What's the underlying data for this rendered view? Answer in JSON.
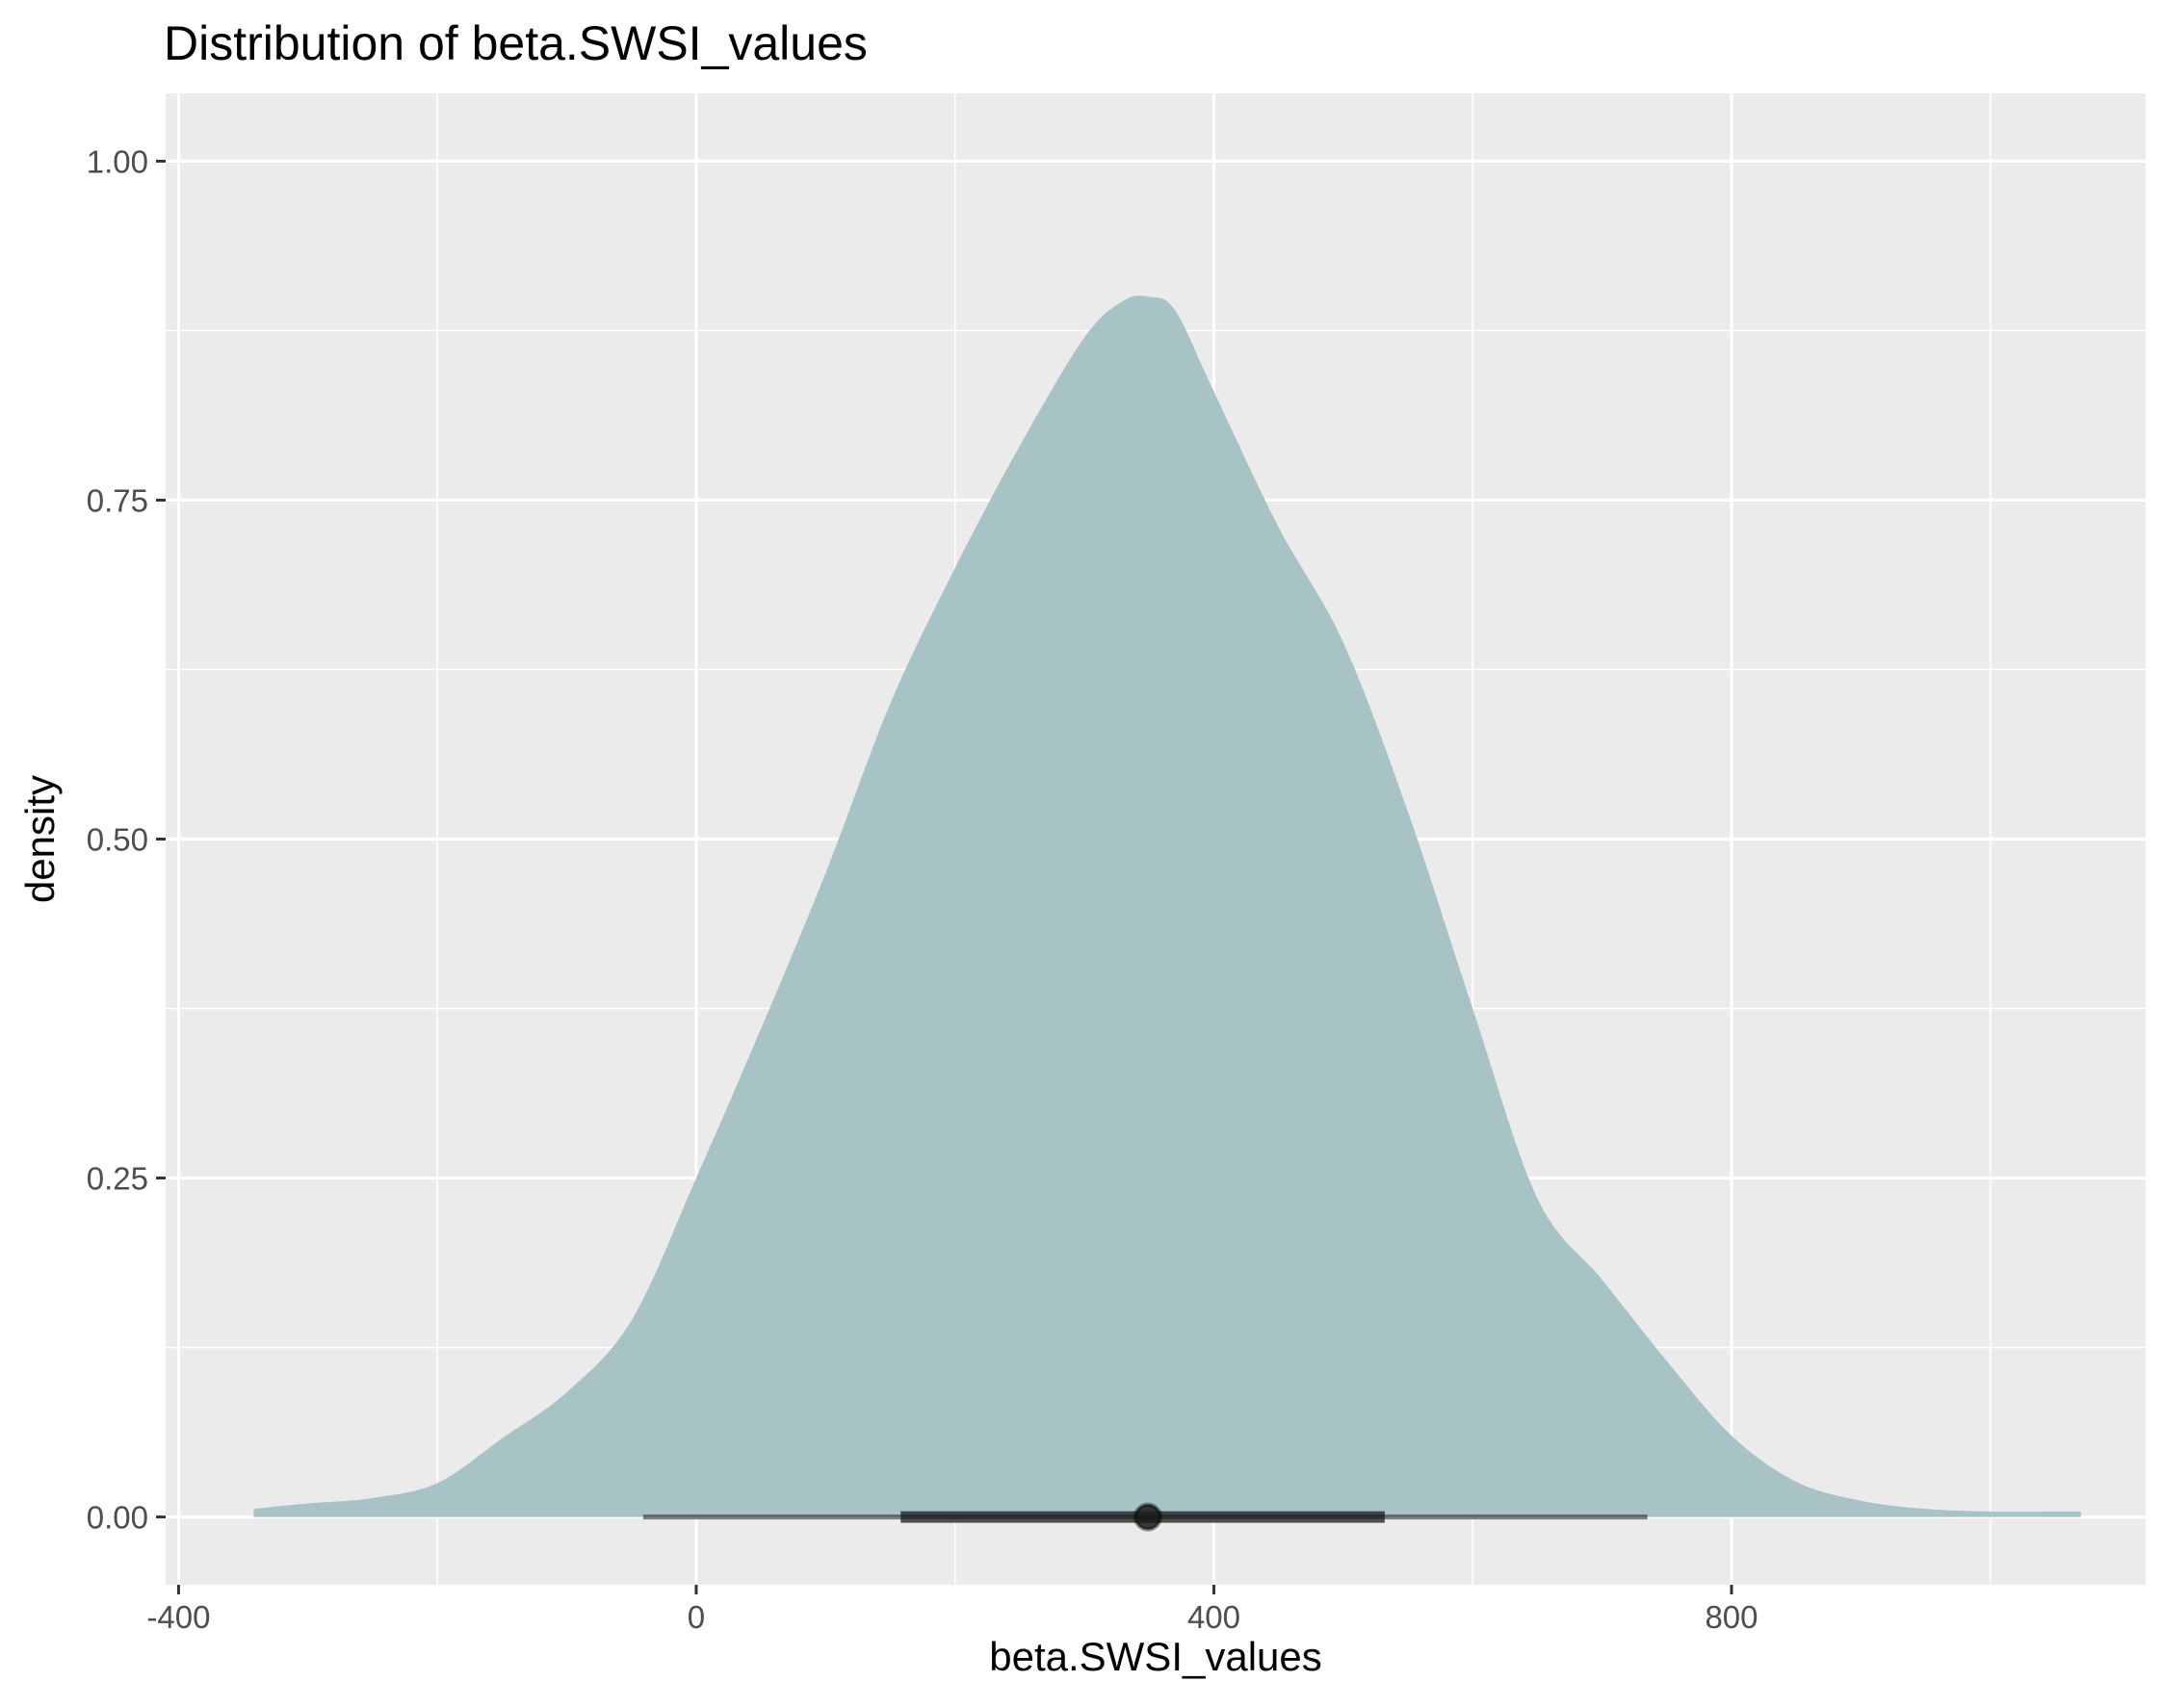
{
  "chart_data": {
    "type": "area",
    "title": "Distribution of beta.SWSI_values",
    "xlabel": "beta.SWSI_values",
    "ylabel": "density",
    "xlim": [
      -410,
      1120
    ],
    "ylim": [
      -0.05,
      1.05
    ],
    "x_ticks": [
      {
        "value": -400,
        "label": "-400"
      },
      {
        "value": 0,
        "label": "0"
      },
      {
        "value": 400,
        "label": "400"
      },
      {
        "value": 800,
        "label": "800"
      }
    ],
    "y_ticks": [
      {
        "value": 0,
        "label": "0.00"
      },
      {
        "value": 0.25,
        "label": "0.25"
      },
      {
        "value": 0.5,
        "label": "0.50"
      },
      {
        "value": 0.75,
        "label": "0.75"
      },
      {
        "value": 1.0,
        "label": "1.00"
      }
    ],
    "grid": true,
    "series": [
      {
        "x": [
          -342,
          -300,
          -250,
          -200,
          -150,
          -100,
          -50,
          0,
          50,
          100,
          150,
          200,
          250,
          300,
          330,
          350,
          370,
          400,
          450,
          500,
          550,
          600,
          650,
          700,
          750,
          800,
          850,
          900,
          950,
          1000,
          1050,
          1070
        ],
        "y": [
          0.006,
          0.01,
          0.014,
          0.025,
          0.058,
          0.092,
          0.145,
          0.25,
          0.36,
          0.475,
          0.6,
          0.7,
          0.79,
          0.87,
          0.897,
          0.9,
          0.89,
          0.83,
          0.73,
          0.645,
          0.52,
          0.375,
          0.235,
          0.175,
          0.115,
          0.06,
          0.026,
          0.012,
          0.006,
          0.004,
          0.004,
          0.004
        ]
      }
    ],
    "interval": {
      "point": 349,
      "inner": [
        158,
        532
      ],
      "outer": [
        -41,
        735
      ]
    },
    "colors": {
      "fill": "#a7c3c5",
      "panel": "#ebebeb",
      "grid": "#ffffff",
      "interval": "#1a1a1a"
    }
  }
}
